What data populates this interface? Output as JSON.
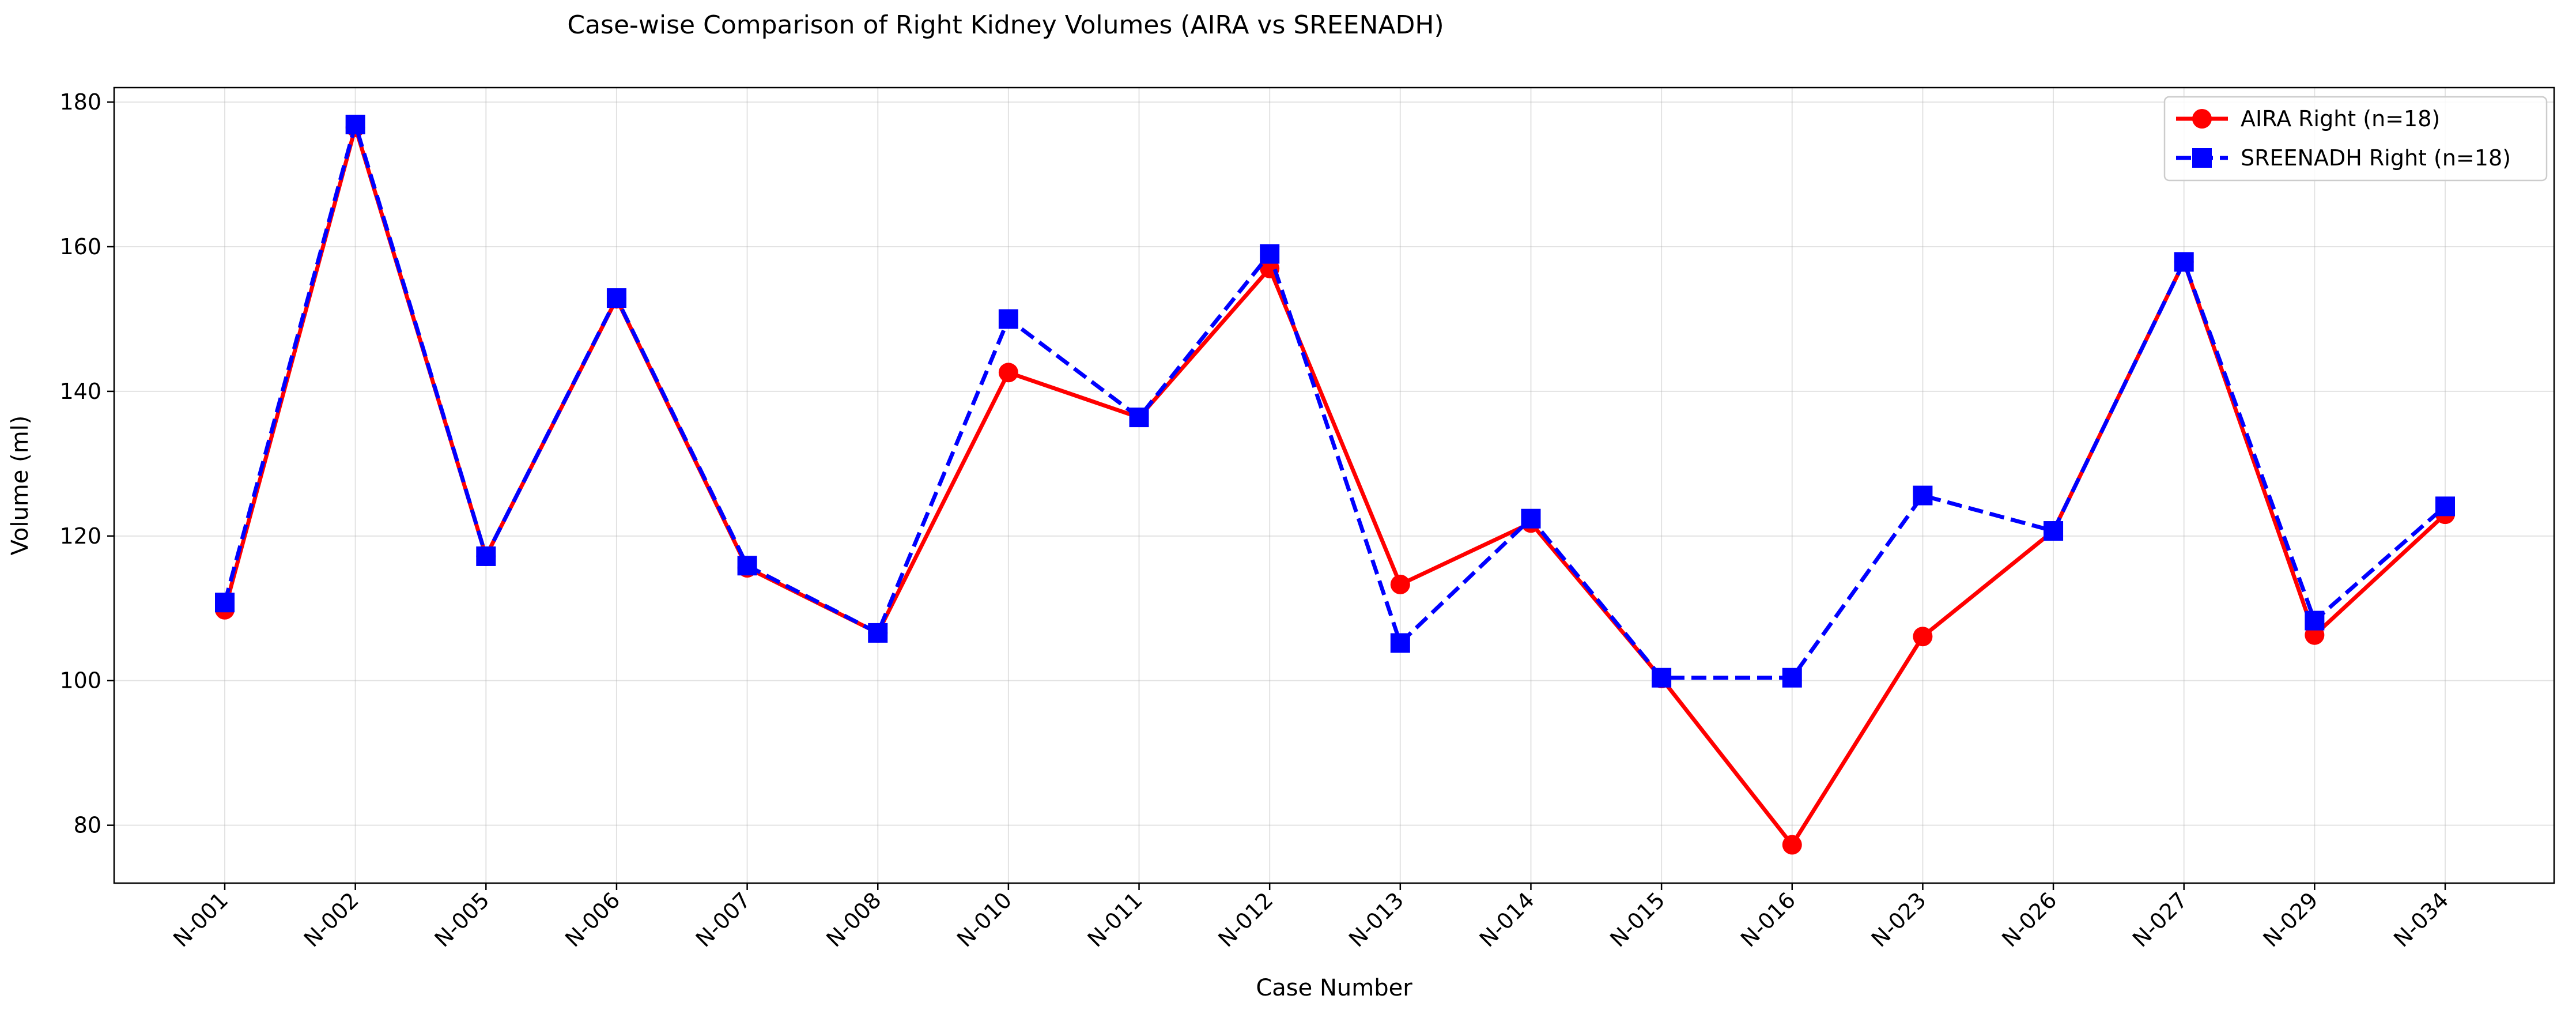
{
  "chart_data": {
    "type": "line",
    "title": "Case-wise Comparison of Right Kidney Volumes (AIRA vs SREENADH)",
    "xlabel": "Case Number",
    "ylabel": "Volume (ml)",
    "categories": [
      "N-001",
      "N-002",
      "N-005",
      "N-006",
      "N-007",
      "N-008",
      "N-010",
      "N-011",
      "N-012",
      "N-013",
      "N-014",
      "N-015",
      "N-016",
      "N-023",
      "N-026",
      "N-027",
      "N-029",
      "N-034"
    ],
    "ylim": [
      72,
      182
    ],
    "yticks": [
      80,
      100,
      120,
      140,
      160,
      180
    ],
    "grid": true,
    "legend_position": "top-right",
    "series": [
      {
        "name": "AIRA Right (n=18)",
        "color": "#ff0000",
        "line_style": "solid",
        "marker": "circle",
        "values": [
          109.8,
          176.5,
          117.2,
          152.8,
          115.6,
          106.6,
          142.6,
          136.4,
          157.0,
          113.3,
          121.8,
          100.3,
          77.3,
          106.1,
          120.7,
          157.9,
          106.3,
          123.0
        ]
      },
      {
        "name": "SREENADH Right (n=18)",
        "color": "#0000ff",
        "line_style": "dashed",
        "marker": "square",
        "values": [
          110.8,
          176.9,
          117.2,
          152.9,
          115.9,
          106.6,
          150.0,
          136.4,
          159.0,
          105.2,
          122.4,
          100.4,
          100.4,
          125.6,
          120.7,
          157.9,
          108.3,
          124.1
        ]
      }
    ]
  }
}
